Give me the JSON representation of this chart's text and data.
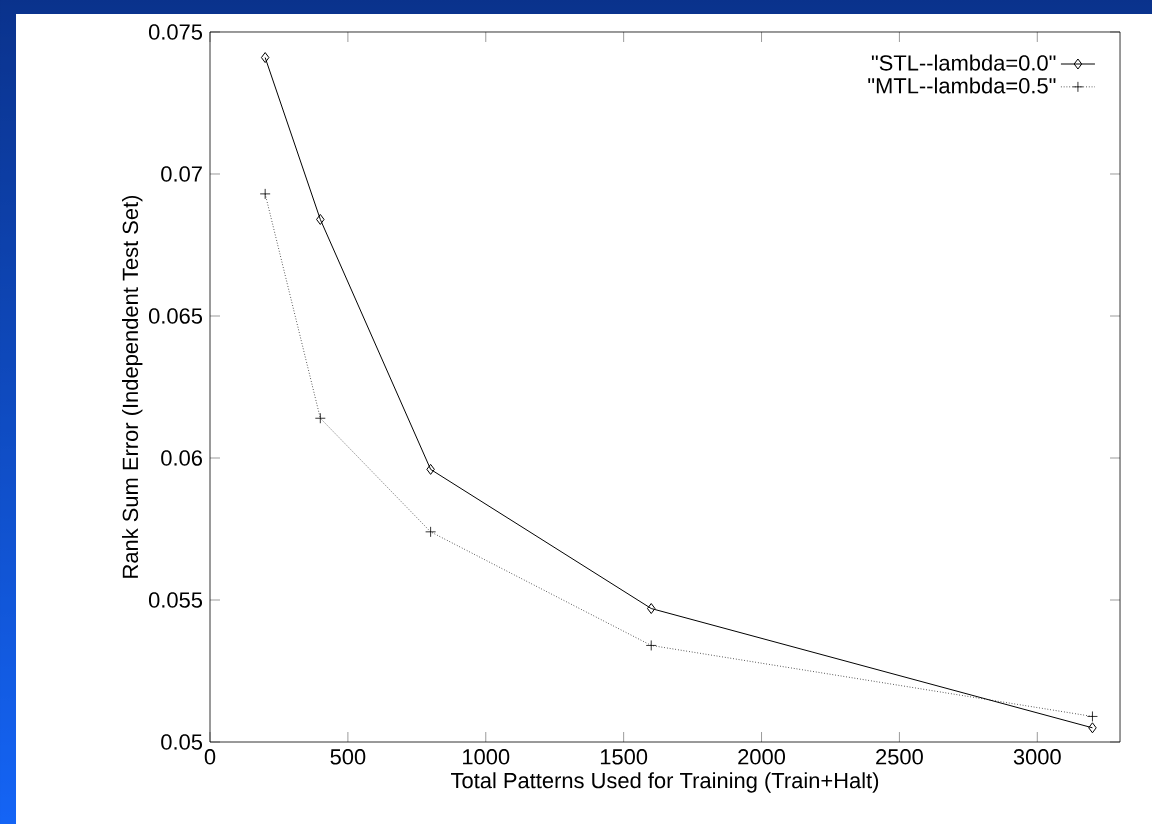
{
  "chart_data": {
    "type": "line",
    "xlabel": "Total Patterns Used for Training (Train+Halt)",
    "ylabel": "Rank Sum Error (Independent Test Set)",
    "x": [
      200,
      400,
      800,
      1600,
      3200
    ],
    "series": [
      {
        "name": "\"STL--lambda=0.0\"",
        "color": "#000000",
        "marker": "diamond",
        "line_style": "solid",
        "values": [
          0.0741,
          0.0684,
          0.0596,
          0.0547,
          0.0505
        ]
      },
      {
        "name": "\"MTL--lambda=0.5\"",
        "color": "#000000",
        "marker": "cross",
        "line_style": "dotted",
        "values": [
          0.0693,
          0.0614,
          0.0574,
          0.0534,
          0.0509
        ]
      }
    ],
    "xlim": [
      0,
      3300
    ],
    "ylim": [
      0.05,
      0.075
    ],
    "xticks": [
      0,
      500,
      1000,
      1500,
      2000,
      2500,
      3000
    ],
    "yticks": [
      0.05,
      0.055,
      0.06,
      0.065,
      0.07,
      0.075
    ],
    "grid": false,
    "legend": "top right"
  }
}
